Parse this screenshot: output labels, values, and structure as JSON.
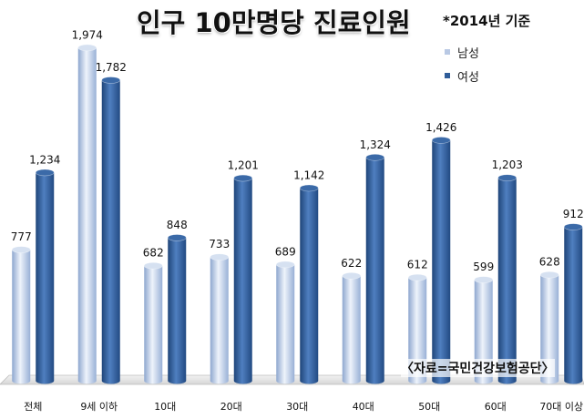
{
  "chart_data": {
    "type": "bar",
    "title": "인구 10만명당 진료인원",
    "subtitle": "*2014년 기준",
    "source": "〈자료=국민건강보험공단〉",
    "categories": [
      "전체",
      "9세 이하",
      "10대",
      "20대",
      "30대",
      "40대",
      "50대",
      "60대",
      "70대 이상"
    ],
    "series": [
      {
        "name": "남성",
        "color": "#b9c9e4",
        "values": [
          777,
          1974,
          682,
          733,
          689,
          622,
          612,
          599,
          628
        ]
      },
      {
        "name": "여성",
        "color": "#2f5d99",
        "values": [
          1234,
          1782,
          848,
          1201,
          1142,
          1324,
          1426,
          1203,
          912
        ]
      }
    ],
    "value_labels": {
      "남성": [
        "777",
        "1,974",
        "682",
        "733",
        "689",
        "622",
        "612",
        "599",
        "628"
      ],
      "여성": [
        "1,234",
        "1,782",
        "848",
        "1,201",
        "1,142",
        "1,324",
        "1,426",
        "1,203",
        "912"
      ]
    },
    "ylim": [
      0,
      2100
    ],
    "legend": "top-right",
    "grid": false
  }
}
